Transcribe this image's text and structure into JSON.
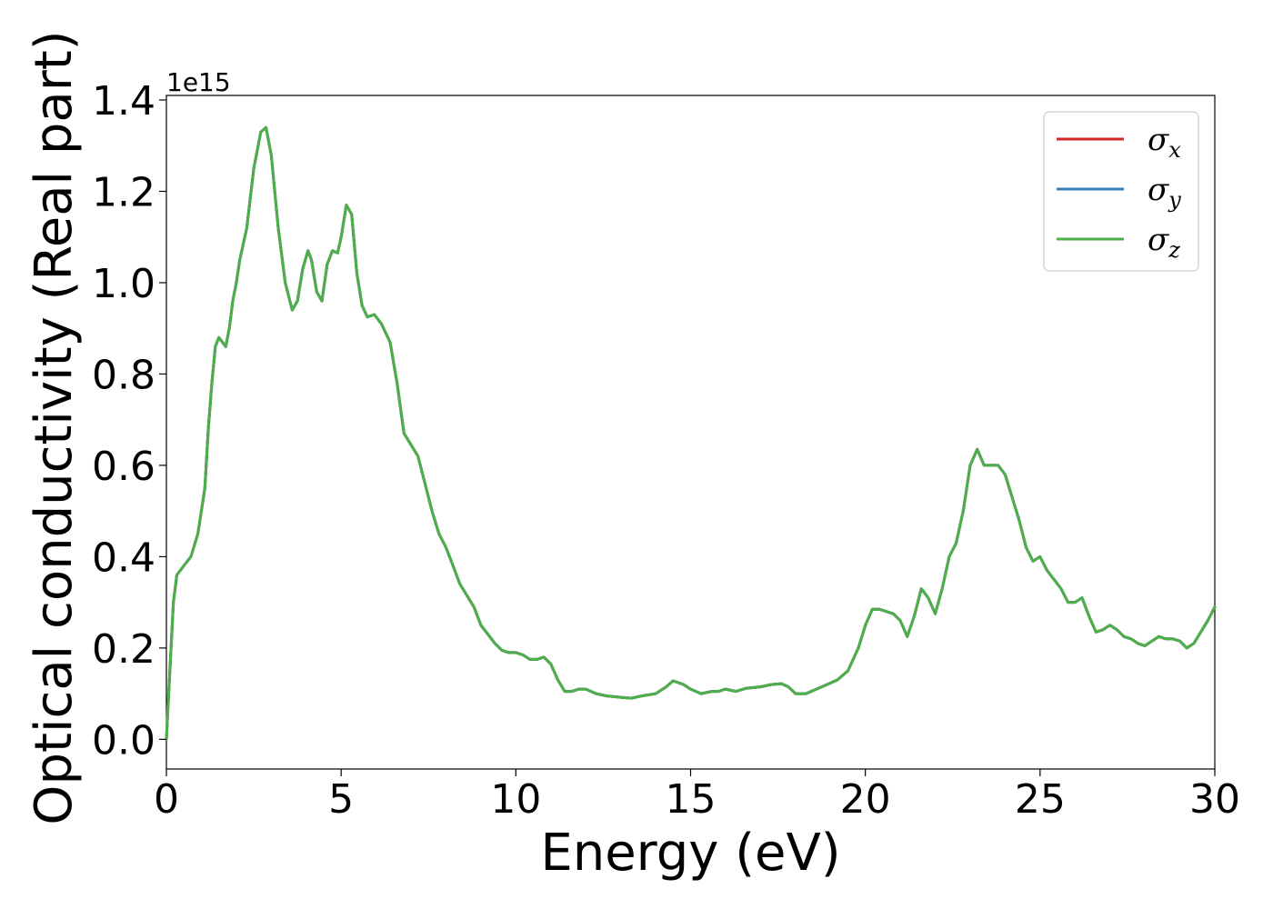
{
  "chart_data": {
    "type": "line",
    "xlabel": "Energy (eV)",
    "ylabel": "Optical conductivity (Real part)",
    "y_offset_label": "1e15",
    "xlim": [
      0,
      30
    ],
    "ylim": [
      -0.065,
      1.41
    ],
    "y_scale_factor": 1000000000000000.0,
    "x_ticks": [
      0,
      5,
      10,
      15,
      20,
      25,
      30
    ],
    "x_tick_labels": [
      "0",
      "5",
      "10",
      "15",
      "20",
      "25",
      "30"
    ],
    "y_ticks": [
      0.0,
      0.2,
      0.4,
      0.6,
      0.8,
      1.0,
      1.2,
      1.4
    ],
    "y_tick_labels": [
      "0.0",
      "0.2",
      "0.4",
      "0.6",
      "0.8",
      "1.0",
      "1.2",
      "1.4"
    ],
    "grid": false,
    "legend_position": "top-right",
    "series": [
      {
        "name": "σx",
        "legend_symbol": "σ",
        "legend_sub": "x",
        "color": "#d62728",
        "x": [
          0,
          0.1,
          0.2,
          0.3,
          0.5,
          0.7,
          0.9,
          1.1,
          1.2,
          1.3,
          1.4,
          1.5,
          1.6,
          1.7,
          1.8,
          1.9,
          2.0,
          2.1,
          2.3,
          2.5,
          2.7,
          2.85,
          3.0,
          3.2,
          3.4,
          3.6,
          3.75,
          3.9,
          4.05,
          4.15,
          4.3,
          4.45,
          4.6,
          4.75,
          4.9,
          5.0,
          5.15,
          5.3,
          5.45,
          5.6,
          5.75,
          5.95,
          6.15,
          6.4,
          6.6,
          6.8,
          7.0,
          7.2,
          7.4,
          7.6,
          7.8,
          8.0,
          8.2,
          8.4,
          8.6,
          8.8,
          9.0,
          9.2,
          9.4,
          9.6,
          9.8,
          10.0,
          10.2,
          10.4,
          10.6,
          10.8,
          11.0,
          11.2,
          11.4,
          11.6,
          11.8,
          12.0,
          12.3,
          12.6,
          13.0,
          13.3,
          13.6,
          14.0,
          14.3,
          14.5,
          14.8,
          15.0,
          15.3,
          15.6,
          15.8,
          16.0,
          16.3,
          16.6,
          17.0,
          17.3,
          17.6,
          17.8,
          18.0,
          18.3,
          18.6,
          18.9,
          19.2,
          19.5,
          19.8,
          20.0,
          20.2,
          20.4,
          20.6,
          20.8,
          21.0,
          21.2,
          21.4,
          21.6,
          21.8,
          22.0,
          22.2,
          22.4,
          22.6,
          22.8,
          23.0,
          23.2,
          23.4,
          23.6,
          23.8,
          24.0,
          24.2,
          24.4,
          24.6,
          24.8,
          25.0,
          25.2,
          25.4,
          25.6,
          25.8,
          26.0,
          26.2,
          26.4,
          26.6,
          26.8,
          27.0,
          27.2,
          27.4,
          27.6,
          27.8,
          28.0,
          28.2,
          28.4,
          28.6,
          28.8,
          29.0,
          29.2,
          29.4,
          29.6,
          29.8,
          30.0
        ],
        "y": [
          0.0,
          0.15,
          0.3,
          0.36,
          0.38,
          0.4,
          0.45,
          0.55,
          0.68,
          0.78,
          0.86,
          0.88,
          0.87,
          0.86,
          0.9,
          0.96,
          1.0,
          1.05,
          1.12,
          1.25,
          1.33,
          1.34,
          1.28,
          1.12,
          1.0,
          0.94,
          0.96,
          1.03,
          1.07,
          1.05,
          0.98,
          0.96,
          1.04,
          1.07,
          1.065,
          1.1,
          1.17,
          1.15,
          1.02,
          0.95,
          0.925,
          0.93,
          0.91,
          0.87,
          0.78,
          0.67,
          0.645,
          0.62,
          0.56,
          0.5,
          0.45,
          0.42,
          0.38,
          0.34,
          0.315,
          0.29,
          0.25,
          0.23,
          0.21,
          0.195,
          0.19,
          0.19,
          0.185,
          0.175,
          0.175,
          0.18,
          0.165,
          0.13,
          0.105,
          0.105,
          0.11,
          0.11,
          0.1,
          0.095,
          0.092,
          0.09,
          0.095,
          0.1,
          0.115,
          0.128,
          0.12,
          0.11,
          0.1,
          0.105,
          0.105,
          0.11,
          0.105,
          0.112,
          0.115,
          0.12,
          0.122,
          0.115,
          0.1,
          0.1,
          0.11,
          0.12,
          0.13,
          0.15,
          0.2,
          0.25,
          0.285,
          0.285,
          0.28,
          0.275,
          0.26,
          0.225,
          0.27,
          0.33,
          0.31,
          0.275,
          0.33,
          0.4,
          0.43,
          0.5,
          0.6,
          0.635,
          0.6,
          0.6,
          0.6,
          0.58,
          0.53,
          0.48,
          0.42,
          0.39,
          0.4,
          0.37,
          0.35,
          0.33,
          0.3,
          0.3,
          0.31,
          0.27,
          0.235,
          0.24,
          0.25,
          0.24,
          0.225,
          0.22,
          0.21,
          0.205,
          0.215,
          0.225,
          0.22,
          0.22,
          0.215,
          0.2,
          0.21,
          0.235,
          0.26,
          0.29
        ]
      },
      {
        "name": "σy",
        "legend_symbol": "σ",
        "legend_sub": "y",
        "color": "#377eb8",
        "same_as": "σx"
      },
      {
        "name": "σz",
        "legend_symbol": "σ",
        "legend_sub": "z",
        "color": "#4daf4a",
        "same_as": "σx"
      }
    ]
  }
}
